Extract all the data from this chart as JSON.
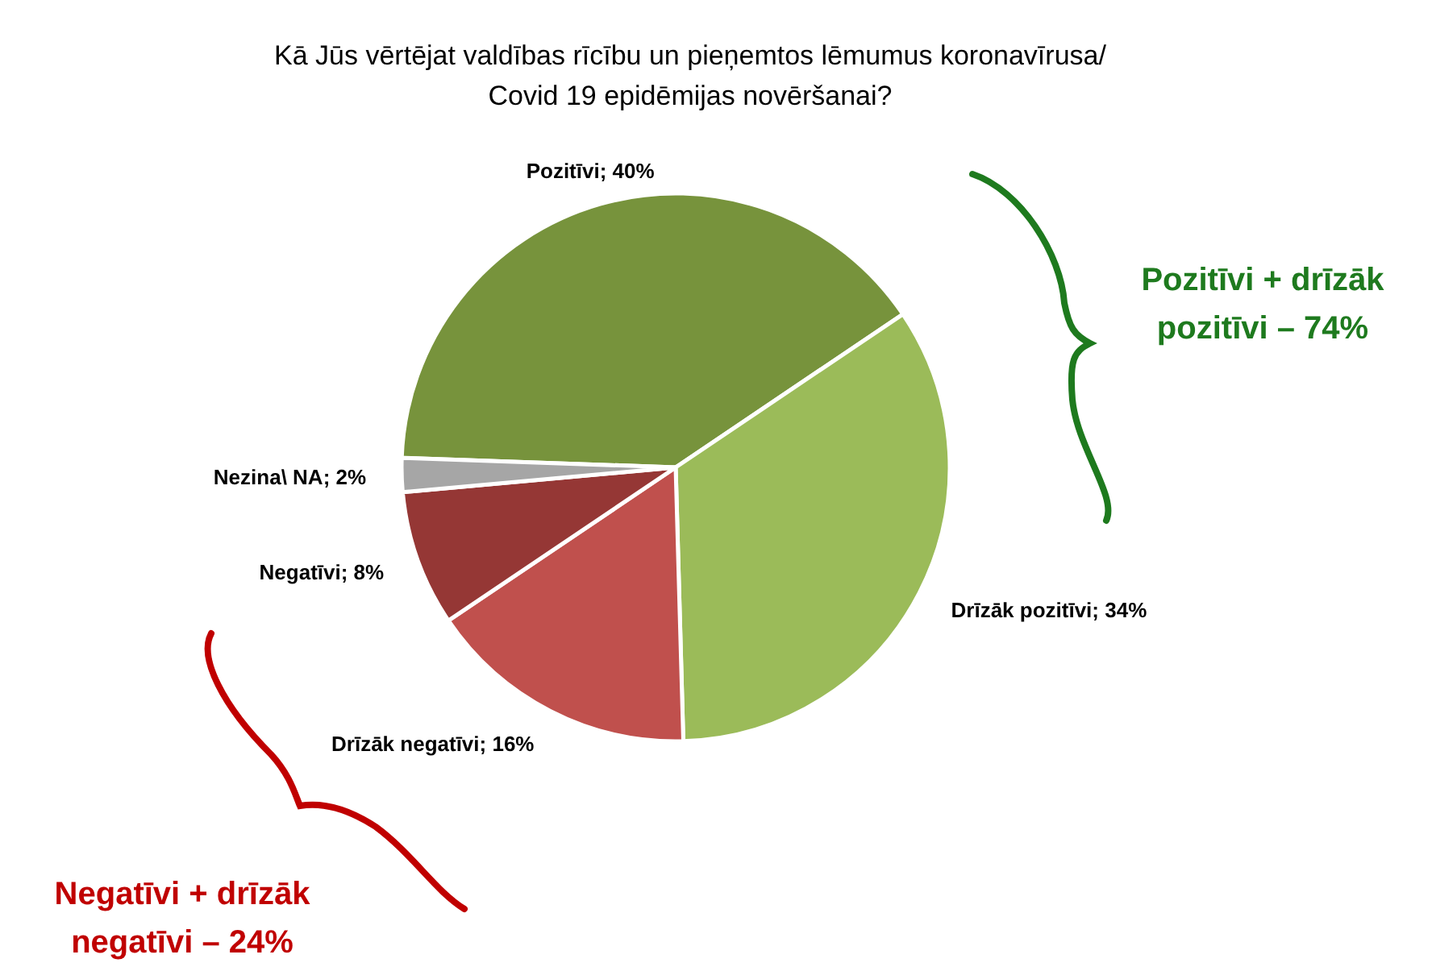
{
  "chart_data": {
    "type": "pie",
    "title": "Kā Jūs vērtējat valdības rīcību un pieņemtos lēmumus koronavīrusa/ Covid 19 epidēmijas novēršanai?",
    "categories": [
      "Pozitīvi",
      "Drīzāk pozitīvi",
      "Drīzāk negatīvi",
      "Negatīvi",
      "Nezina\\ NA"
    ],
    "values": [
      40,
      34,
      16,
      8,
      2
    ],
    "colors": [
      "#77933c",
      "#9bbb59",
      "#c0504d",
      "#953735",
      "#a6a6a6"
    ],
    "value_labels": [
      "40%",
      "34%",
      "16%",
      "8%",
      "2%"
    ],
    "annotations": [
      "Pozitīvi + drīzāk pozitīvi – 74%",
      "Negatīvi + drīzāk negatīvi – 24%"
    ]
  }
}
